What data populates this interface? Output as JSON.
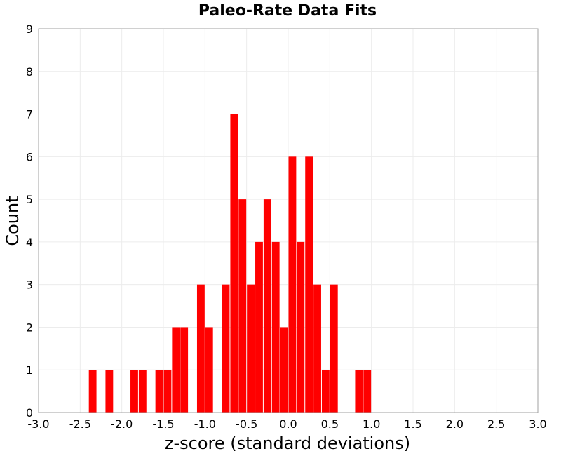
{
  "chart_data": {
    "type": "bar",
    "title": "Paleo-Rate Data Fits",
    "xlabel": "z-score (standard deviations)",
    "ylabel": "Count",
    "xlim": [
      -3.0,
      3.0
    ],
    "ylim": [
      0,
      9
    ],
    "bin_width": 0.1,
    "x_ticks": [
      "-3.0",
      "-2.5",
      "-2.0",
      "-1.5",
      "-1.0",
      "-0.5",
      "0.0",
      "0.5",
      "1.0",
      "1.5",
      "2.0",
      "2.5",
      "3.0"
    ],
    "y_ticks": [
      "0",
      "1",
      "2",
      "3",
      "4",
      "5",
      "6",
      "7",
      "8",
      "9"
    ],
    "grid": true,
    "bar_color": "#ff0000",
    "x": [
      -2.35,
      -2.15,
      -1.85,
      -1.75,
      -1.55,
      -1.45,
      -1.35,
      -1.25,
      -1.05,
      -0.95,
      -0.75,
      -0.65,
      -0.55,
      -0.45,
      -0.35,
      -0.25,
      -0.15,
      -0.05,
      0.05,
      0.15,
      0.25,
      0.35,
      0.45,
      0.55,
      0.85,
      0.95
    ],
    "values": [
      1,
      1,
      1,
      1,
      1,
      1,
      2,
      2,
      3,
      2,
      3,
      7,
      5,
      3,
      4,
      5,
      4,
      2,
      6,
      4,
      6,
      3,
      1,
      3,
      1,
      1
    ]
  }
}
